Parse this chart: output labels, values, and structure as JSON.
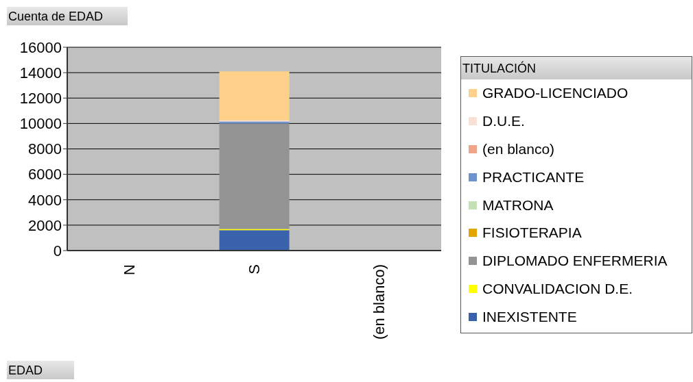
{
  "chart_data": {
    "type": "bar",
    "title": "Cuenta de EDAD",
    "xlabel": "EDAD",
    "legend_title": "TITULACIÓN",
    "stacked": true,
    "categories": [
      "N",
      "S",
      "(en blanco)"
    ],
    "series": [
      {
        "name": "INEXISTENTE",
        "color": "#3a62ac",
        "values": [
          null,
          1600,
          null
        ]
      },
      {
        "name": "CONVALIDACION D.E.",
        "color": "#ffff00",
        "values": [
          null,
          100,
          null
        ]
      },
      {
        "name": "DIPLOMADO ENFERMERIA",
        "color": "#939393",
        "values": [
          null,
          8300,
          null
        ]
      },
      {
        "name": "FISIOTERAPIA",
        "color": "#e3a600",
        "values": [
          null,
          0,
          null
        ]
      },
      {
        "name": "MATRONA",
        "color": "#c5e0b4",
        "values": [
          null,
          0,
          null
        ]
      },
      {
        "name": "PRACTICANTE",
        "color": "#6f93cc",
        "values": [
          null,
          150,
          null
        ]
      },
      {
        "name": "(en blanco)",
        "color": "#f0a58a",
        "values": [
          null,
          0,
          null
        ]
      },
      {
        "name": "D.U.E.",
        "color": "#f9e1d6",
        "values": [
          null,
          100,
          null
        ]
      },
      {
        "name": "GRADO-LICENCIADO",
        "color": "#ffd08a",
        "values": [
          null,
          3850,
          null
        ]
      }
    ],
    "ylim": [
      0,
      16000
    ],
    "yticks": [
      0,
      2000,
      4000,
      6000,
      8000,
      10000,
      12000,
      14000,
      16000
    ],
    "grid": "y",
    "legend": "right"
  }
}
